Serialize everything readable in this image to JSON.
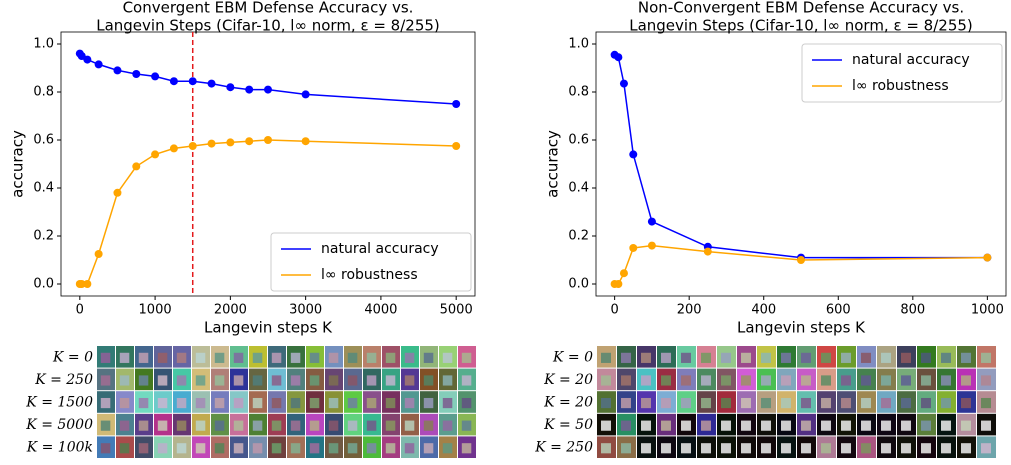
{
  "chart_data": [
    {
      "type": "line",
      "title": [
        "Convergent EBM Defense Accuracy vs.",
        "Langevin Steps (Cifar-10, l∞ norm, ε = 8/255)"
      ],
      "xlabel": "Langevin steps K",
      "ylabel": "accuracy",
      "x": [
        0,
        25,
        100,
        250,
        500,
        750,
        1000,
        1250,
        1500,
        1750,
        2000,
        2250,
        2500,
        3000,
        5000
      ],
      "series": [
        {
          "name": "natural accuracy",
          "color": "#0000ff",
          "values": [
            0.96,
            0.95,
            0.935,
            0.915,
            0.89,
            0.875,
            0.865,
            0.845,
            0.845,
            0.835,
            0.82,
            0.81,
            0.81,
            0.79,
            0.75
          ]
        },
        {
          "name": "l∞ robustness",
          "color": "#ffa500",
          "values": [
            0,
            0,
            0,
            0.125,
            0.38,
            0.49,
            0.54,
            0.565,
            0.575,
            0.585,
            0.59,
            0.595,
            0.6,
            0.595,
            0.575
          ]
        }
      ],
      "vline": {
        "x": 1500,
        "color": "#e41a1c"
      },
      "xlim": [
        -250,
        5250
      ],
      "xticks": [
        0,
        1000,
        2000,
        3000,
        4000,
        5000
      ],
      "ylim": [
        -0.05,
        1.05
      ],
      "yticks": [
        {
          "value": 0,
          "label": "0.0"
        },
        0.2,
        0.4,
        0.6,
        0.8,
        {
          "value": 1,
          "label": "1.0"
        }
      ],
      "legend": "lower right"
    },
    {
      "type": "line",
      "title": [
        "Non-Convergent EBM Defense Accuracy vs.",
        "Langevin Steps (Cifar-10, l∞ norm, ε = 8/255)"
      ],
      "xlabel": "Langevin steps K",
      "ylabel": "accuracy",
      "x": [
        0,
        10,
        25,
        50,
        100,
        250,
        500,
        1000
      ],
      "series": [
        {
          "name": "natural accuracy",
          "color": "#0000ff",
          "values": [
            0.955,
            0.945,
            0.835,
            0.54,
            0.26,
            0.155,
            0.11,
            0.11
          ]
        },
        {
          "name": "l∞ robustness",
          "color": "#ffa500",
          "values": [
            0,
            0,
            0.045,
            0.15,
            0.16,
            0.135,
            0.1,
            0.11
          ]
        }
      ],
      "xlim": [
        -50,
        1050
      ],
      "xticks": [
        0,
        200,
        400,
        600,
        800,
        1000
      ],
      "ylim": [
        -0.05,
        1.05
      ],
      "yticks": [
        {
          "value": 0,
          "label": "0.0"
        },
        0.2,
        0.4,
        0.6,
        0.8,
        {
          "value": 1,
          "label": "1.0"
        }
      ],
      "legend": "upper right"
    }
  ],
  "image_grids": [
    {
      "row_labels": [
        "K = 0",
        "K = 250",
        "K = 1500",
        "K = 5000",
        "K = 100k"
      ]
    },
    {
      "row_labels": [
        "K = 0",
        "K = 20",
        "K = 20",
        "K = 50",
        "K = 250"
      ]
    }
  ]
}
